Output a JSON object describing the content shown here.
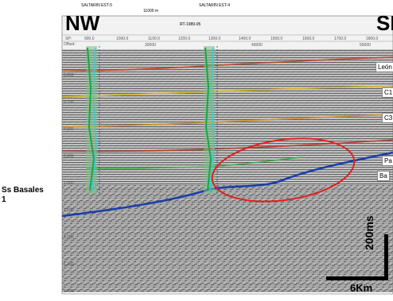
{
  "labels": {
    "nw": "NW",
    "se_partial": "SE",
    "side_label_line1": "Ss Basales",
    "side_label_line2": "1",
    "scale_time": "200ms",
    "scale_dist": "6Km"
  },
  "wells": {
    "left": "SALTARIN EST-5",
    "right": "SALTARIN EST-4",
    "spacing": "11000 m",
    "line_id": "RT-1989-05"
  },
  "axis": {
    "sp_label": "SP:",
    "offset_label": "Offset:",
    "sp_ticks": [
      "900.0",
      "1000.0",
      "1100.0",
      "1200.0",
      "1300.0",
      "1400.0",
      "1500.0",
      "1600.0",
      "1700.0",
      "1800.0"
    ],
    "offset_ticks": [
      "30000",
      "40000",
      "50000"
    ],
    "time_ticks": [
      "0.600",
      "0.700",
      "0.800",
      "0.900",
      "1.000",
      "1.100",
      "1.200",
      "1.300",
      "1.400"
    ]
  },
  "horizons": [
    {
      "label": "León",
      "color": "#c0392b"
    },
    {
      "label": "C1",
      "color": "#e0c020"
    },
    {
      "label": "C3",
      "color": "#d08020"
    },
    {
      "label": "Pa",
      "color": "#c03020"
    },
    {
      "label": "Ba",
      "color": "#2050c0"
    }
  ],
  "colors": {
    "leon": "#b84a2a",
    "c1": "#d7b62a",
    "c3": "#d0902a",
    "pa": "#b0402a",
    "basement": "#1a3fa8",
    "green": "#3cb043",
    "ellipse": "#e02020"
  }
}
